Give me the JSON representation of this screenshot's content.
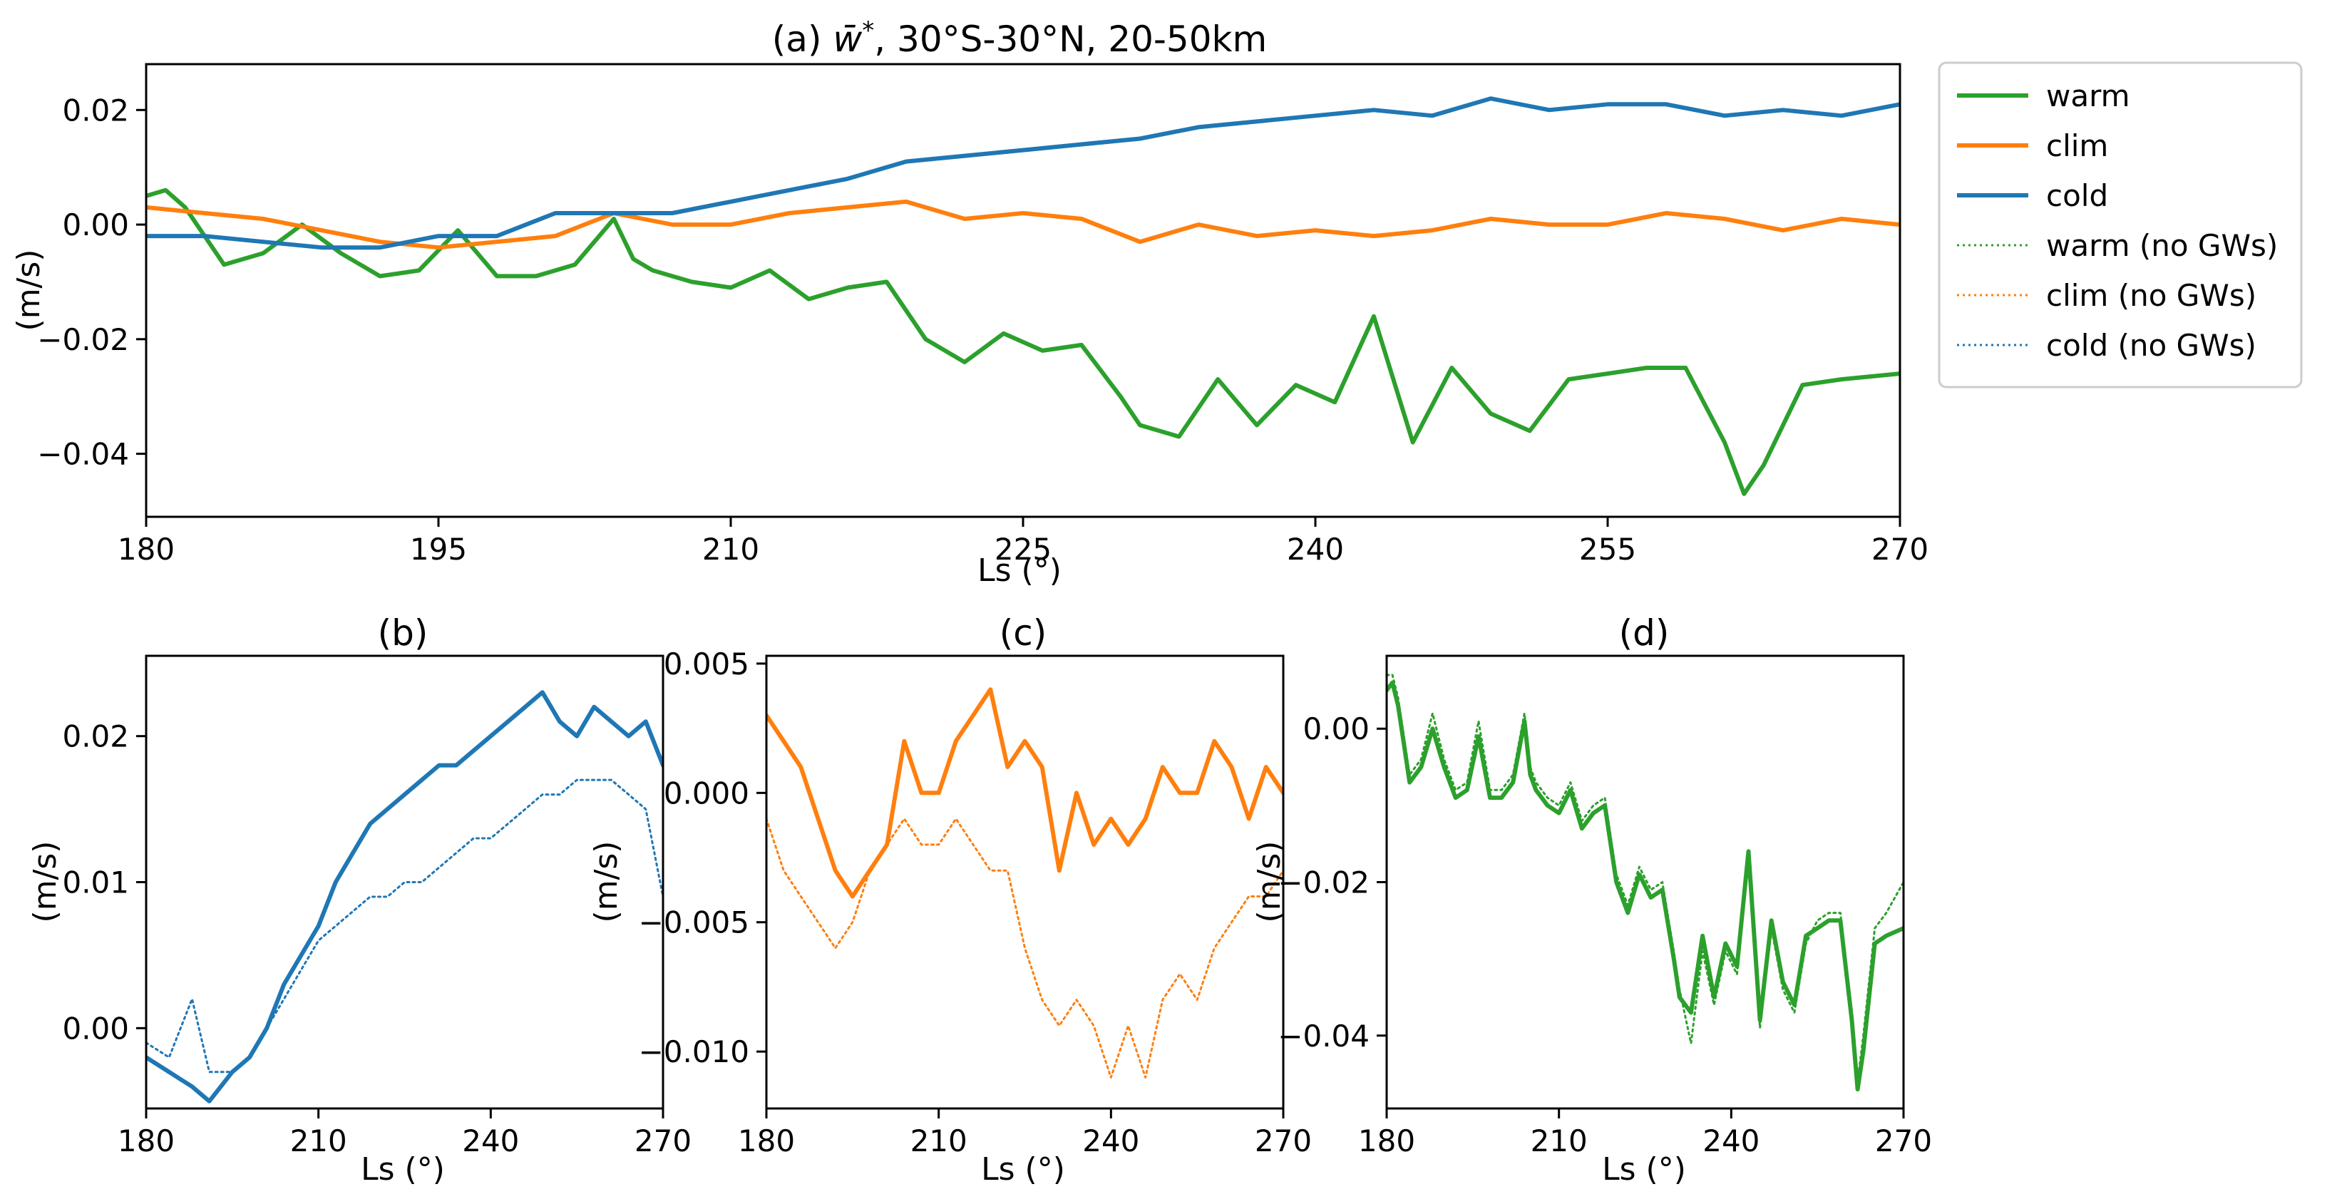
{
  "colors": {
    "warm": "#2ca02c",
    "clim": "#ff7f0e",
    "cold": "#1f77b4",
    "axis": "#000000",
    "legend_border": "#cccccc"
  },
  "legend": {
    "entries": [
      {
        "key": "warm",
        "label": "warm",
        "style": "solid"
      },
      {
        "key": "clim",
        "label": "clim",
        "style": "solid"
      },
      {
        "key": "cold",
        "label": "cold",
        "style": "solid"
      },
      {
        "key": "warm",
        "label": "warm (no GWs)",
        "style": "dotted"
      },
      {
        "key": "clim",
        "label": "clim (no GWs)",
        "style": "dotted"
      },
      {
        "key": "cold",
        "label": "cold (no GWs)",
        "style": "dotted"
      }
    ]
  },
  "chart_data": [
    {
      "id": "a",
      "type": "line",
      "title_prefix": "(a) ",
      "title_symbol": "w̄",
      "title_sup": "*",
      "title_suffix": ", 30°S-30°N, 20-50km",
      "xlabel": "Ls (°)",
      "ylabel": "(m/s)",
      "xlim": [
        180,
        270
      ],
      "ylim": [
        -0.051,
        0.028
      ],
      "xticks": [
        180,
        195,
        210,
        225,
        240,
        255,
        270
      ],
      "xtick_labels": [
        "180",
        "195",
        "210",
        "225",
        "240",
        "255",
        "270"
      ],
      "yticks": [
        0.02,
        0.0,
        -0.02,
        -0.04
      ],
      "ytick_labels": [
        "0.02",
        "0.00",
        "−0.02",
        "−0.04"
      ],
      "series": [
        {
          "name": "warm",
          "key": "warm",
          "style": "solid",
          "x": [
            180,
            181,
            182,
            183,
            184,
            186,
            188,
            190,
            192,
            194,
            196,
            198,
            200,
            202,
            204,
            205,
            206,
            208,
            210,
            212,
            214,
            216,
            218,
            220,
            222,
            224,
            226,
            228,
            230,
            231,
            233,
            235,
            237,
            239,
            241,
            243,
            245,
            247,
            249,
            251,
            253,
            255,
            257,
            259,
            261,
            262,
            263,
            265,
            267,
            270
          ],
          "y": [
            0.005,
            0.006,
            0.003,
            -0.002,
            -0.007,
            -0.005,
            0.0,
            -0.005,
            -0.009,
            -0.008,
            -0.001,
            -0.009,
            -0.009,
            -0.007,
            0.001,
            -0.006,
            -0.008,
            -0.01,
            -0.011,
            -0.008,
            -0.013,
            -0.011,
            -0.01,
            -0.02,
            -0.024,
            -0.019,
            -0.022,
            -0.021,
            -0.03,
            -0.035,
            -0.037,
            -0.027,
            -0.035,
            -0.028,
            -0.031,
            -0.016,
            -0.038,
            -0.025,
            -0.033,
            -0.036,
            -0.027,
            -0.026,
            -0.025,
            -0.025,
            -0.038,
            -0.047,
            -0.042,
            -0.028,
            -0.027,
            -0.026
          ]
        },
        {
          "name": "clim",
          "key": "clim",
          "style": "solid",
          "x": [
            180,
            183,
            186,
            189,
            192,
            195,
            198,
            201,
            204,
            207,
            210,
            213,
            216,
            219,
            222,
            225,
            228,
            231,
            234,
            237,
            240,
            243,
            246,
            249,
            252,
            255,
            258,
            261,
            264,
            267,
            270
          ],
          "y": [
            0.003,
            0.002,
            0.001,
            -0.001,
            -0.003,
            -0.004,
            -0.003,
            -0.002,
            0.002,
            0.0,
            0.0,
            0.002,
            0.003,
            0.004,
            0.001,
            0.002,
            0.001,
            -0.003,
            0.0,
            -0.002,
            -0.001,
            -0.002,
            -0.001,
            0.001,
            0.0,
            0.0,
            0.002,
            0.001,
            -0.001,
            0.001,
            0.0
          ]
        },
        {
          "name": "cold",
          "key": "cold",
          "style": "solid",
          "x": [
            180,
            183,
            186,
            189,
            192,
            195,
            198,
            201,
            204,
            207,
            210,
            213,
            216,
            219,
            222,
            225,
            228,
            231,
            234,
            237,
            240,
            243,
            246,
            249,
            252,
            255,
            258,
            261,
            264,
            267,
            270
          ],
          "y": [
            -0.002,
            -0.002,
            -0.003,
            -0.004,
            -0.004,
            -0.002,
            -0.002,
            0.002,
            0.002,
            0.002,
            0.004,
            0.006,
            0.008,
            0.011,
            0.012,
            0.013,
            0.014,
            0.015,
            0.017,
            0.018,
            0.019,
            0.02,
            0.019,
            0.022,
            0.02,
            0.021,
            0.021,
            0.019,
            0.02,
            0.019,
            0.021
          ]
        }
      ]
    },
    {
      "id": "b",
      "type": "line",
      "title": "(b)",
      "xlabel": "Ls (°)",
      "ylabel": "(m/s)",
      "xlim": [
        180,
        270
      ],
      "ylim": [
        -0.0055,
        0.0255
      ],
      "xticks": [
        180,
        210,
        240,
        270
      ],
      "xtick_labels": [
        "180",
        "210",
        "240",
        "270"
      ],
      "yticks": [
        0.02,
        0.01,
        0.0
      ],
      "ytick_labels": [
        "0.02",
        "0.01",
        "0.00"
      ],
      "series": [
        {
          "name": "cold",
          "key": "cold",
          "style": "solid",
          "x": [
            180,
            184,
            188,
            191,
            195,
            198,
            201,
            204,
            207,
            210,
            213,
            216,
            219,
            222,
            225,
            228,
            231,
            234,
            237,
            240,
            243,
            246,
            249,
            252,
            255,
            258,
            261,
            264,
            267,
            270
          ],
          "y": [
            -0.002,
            -0.003,
            -0.004,
            -0.005,
            -0.003,
            -0.002,
            0.0,
            0.003,
            0.005,
            0.007,
            0.01,
            0.012,
            0.014,
            0.015,
            0.016,
            0.017,
            0.018,
            0.018,
            0.019,
            0.02,
            0.021,
            0.022,
            0.023,
            0.021,
            0.02,
            0.022,
            0.021,
            0.02,
            0.021,
            0.018
          ]
        },
        {
          "name": "cold (no GWs)",
          "key": "cold",
          "style": "dotted",
          "x": [
            180,
            184,
            188,
            191,
            195,
            198,
            201,
            204,
            207,
            210,
            213,
            216,
            219,
            222,
            225,
            228,
            231,
            234,
            237,
            240,
            243,
            246,
            249,
            252,
            255,
            258,
            261,
            264,
            267,
            270
          ],
          "y": [
            -0.001,
            -0.002,
            0.002,
            -0.003,
            -0.003,
            -0.002,
            0.0,
            0.002,
            0.004,
            0.006,
            0.007,
            0.008,
            0.009,
            0.009,
            0.01,
            0.01,
            0.011,
            0.012,
            0.013,
            0.013,
            0.014,
            0.015,
            0.016,
            0.016,
            0.017,
            0.017,
            0.017,
            0.016,
            0.015,
            0.009
          ]
        }
      ]
    },
    {
      "id": "c",
      "type": "line",
      "title": "(c)",
      "xlabel": "Ls (°)",
      "ylabel": "(m/s)",
      "xlim": [
        180,
        270
      ],
      "ylim": [
        -0.0122,
        0.0053
      ],
      "xticks": [
        180,
        210,
        240,
        270
      ],
      "xtick_labels": [
        "180",
        "210",
        "240",
        "270"
      ],
      "yticks": [
        0.005,
        0.0,
        -0.005,
        -0.01
      ],
      "ytick_labels": [
        "0.005",
        "0.000",
        "−0.005",
        "−0.010"
      ],
      "series": [
        {
          "name": "clim",
          "key": "clim",
          "style": "solid",
          "x": [
            180,
            183,
            186,
            189,
            192,
            195,
            198,
            201,
            204,
            207,
            210,
            213,
            216,
            219,
            222,
            225,
            228,
            231,
            234,
            237,
            240,
            243,
            246,
            249,
            252,
            255,
            258,
            261,
            264,
            267,
            270
          ],
          "y": [
            0.003,
            0.002,
            0.001,
            -0.001,
            -0.003,
            -0.004,
            -0.003,
            -0.002,
            0.002,
            0.0,
            0.0,
            0.002,
            0.003,
            0.004,
            0.001,
            0.002,
            0.001,
            -0.003,
            0.0,
            -0.002,
            -0.001,
            -0.002,
            -0.001,
            0.001,
            0.0,
            0.0,
            0.002,
            0.001,
            -0.001,
            0.001,
            0.0
          ]
        },
        {
          "name": "clim (no GWs)",
          "key": "clim",
          "style": "dotted",
          "x": [
            180,
            183,
            186,
            189,
            192,
            195,
            198,
            201,
            204,
            207,
            210,
            213,
            216,
            219,
            222,
            225,
            228,
            231,
            234,
            237,
            240,
            243,
            246,
            249,
            252,
            255,
            258,
            261,
            264,
            267,
            270
          ],
          "y": [
            -0.001,
            -0.003,
            -0.004,
            -0.005,
            -0.006,
            -0.005,
            -0.003,
            -0.002,
            -0.001,
            -0.002,
            -0.002,
            -0.001,
            -0.002,
            -0.003,
            -0.003,
            -0.006,
            -0.008,
            -0.009,
            -0.008,
            -0.009,
            -0.011,
            -0.009,
            -0.011,
            -0.008,
            -0.007,
            -0.008,
            -0.006,
            -0.005,
            -0.004,
            -0.004,
            -0.003
          ]
        }
      ]
    },
    {
      "id": "d",
      "type": "line",
      "title": "(d)",
      "xlabel": "Ls (°)",
      "ylabel": "(m/s)",
      "xlim": [
        180,
        270
      ],
      "ylim": [
        -0.0495,
        0.0095
      ],
      "xticks": [
        180,
        210,
        240,
        270
      ],
      "xtick_labels": [
        "180",
        "210",
        "240",
        "270"
      ],
      "yticks": [
        0.0,
        -0.02,
        -0.04
      ],
      "ytick_labels": [
        "0.00",
        "−0.02",
        "−0.04"
      ],
      "series": [
        {
          "name": "warm",
          "key": "warm",
          "style": "solid",
          "x": [
            180,
            181,
            182,
            183,
            184,
            186,
            188,
            190,
            192,
            194,
            196,
            198,
            200,
            202,
            204,
            205,
            206,
            208,
            210,
            212,
            214,
            216,
            218,
            220,
            222,
            224,
            226,
            228,
            230,
            231,
            233,
            235,
            237,
            239,
            241,
            243,
            245,
            247,
            249,
            251,
            253,
            255,
            257,
            259,
            261,
            262,
            263,
            265,
            267,
            270
          ],
          "y": [
            0.005,
            0.006,
            0.003,
            -0.002,
            -0.007,
            -0.005,
            0.0,
            -0.005,
            -0.009,
            -0.008,
            -0.001,
            -0.009,
            -0.009,
            -0.007,
            0.001,
            -0.006,
            -0.008,
            -0.01,
            -0.011,
            -0.008,
            -0.013,
            -0.011,
            -0.01,
            -0.02,
            -0.024,
            -0.019,
            -0.022,
            -0.021,
            -0.03,
            -0.035,
            -0.037,
            -0.027,
            -0.035,
            -0.028,
            -0.031,
            -0.016,
            -0.038,
            -0.025,
            -0.033,
            -0.036,
            -0.027,
            -0.026,
            -0.025,
            -0.025,
            -0.038,
            -0.047,
            -0.042,
            -0.028,
            -0.027,
            -0.026
          ]
        },
        {
          "name": "warm (no GWs)",
          "key": "warm",
          "style": "dotted",
          "x": [
            180,
            181,
            182,
            183,
            184,
            186,
            188,
            190,
            192,
            194,
            196,
            198,
            200,
            202,
            204,
            205,
            206,
            208,
            210,
            212,
            214,
            216,
            218,
            220,
            222,
            224,
            226,
            228,
            230,
            231,
            233,
            235,
            237,
            239,
            241,
            243,
            245,
            247,
            249,
            251,
            253,
            255,
            257,
            259,
            261,
            262,
            263,
            265,
            267,
            270
          ],
          "y": [
            0.007,
            0.007,
            0.004,
            -0.001,
            -0.006,
            -0.004,
            0.002,
            -0.004,
            -0.008,
            -0.007,
            0.001,
            -0.008,
            -0.008,
            -0.006,
            0.002,
            -0.005,
            -0.007,
            -0.009,
            -0.01,
            -0.007,
            -0.012,
            -0.01,
            -0.009,
            -0.019,
            -0.023,
            -0.018,
            -0.021,
            -0.02,
            -0.029,
            -0.034,
            -0.041,
            -0.029,
            -0.036,
            -0.029,
            -0.032,
            -0.017,
            -0.039,
            -0.026,
            -0.034,
            -0.037,
            -0.028,
            -0.025,
            -0.024,
            -0.024,
            -0.037,
            -0.046,
            -0.04,
            -0.026,
            -0.024,
            -0.02
          ]
        }
      ]
    }
  ]
}
